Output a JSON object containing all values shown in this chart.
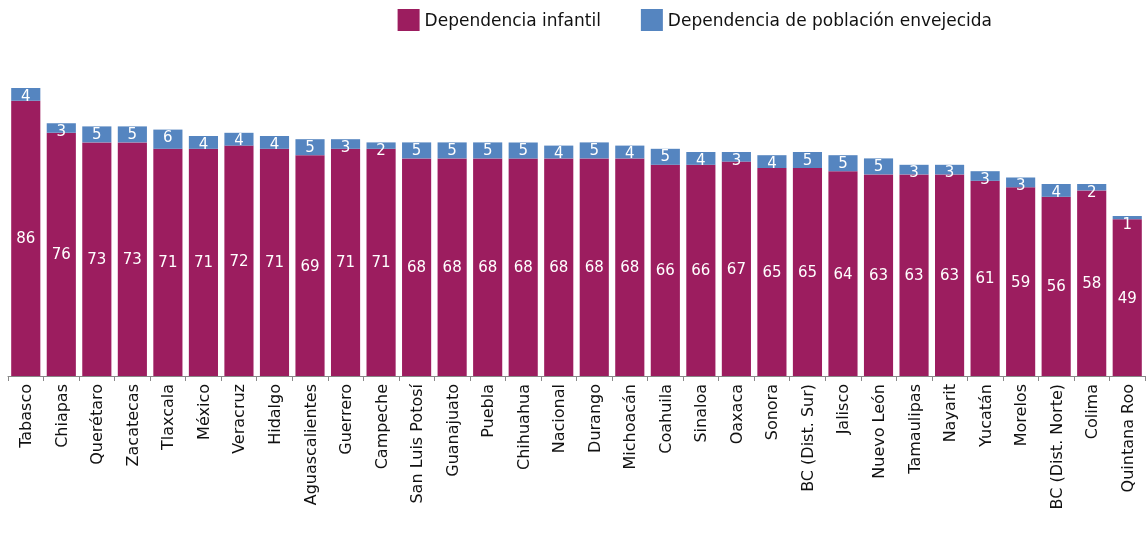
{
  "chart_data": {
    "type": "bar",
    "stacked": true,
    "data_labels": true,
    "legend": "top right",
    "grid": false,
    "categories": [
      "Tabasco",
      "Chiapas",
      "Querétaro",
      "Zacatecas",
      "Tlaxcala",
      "México",
      "Veracruz",
      "Hidalgo",
      "Aguascalientes",
      "Guerrero",
      "Campeche",
      "San Luis Potosí",
      "Guanajuato",
      "Puebla",
      "Chihuahua",
      "Nacional",
      "Durango",
      "Michoacán",
      "Coahuila",
      "Sinaloa",
      "Oaxaca",
      "Sonora",
      "BC (Dist. Sur)",
      "Jalisco",
      "Nuevo León",
      "Tamaulipas",
      "Nayarit",
      "Yucatán",
      "Morelos",
      "BC (Dist. Norte)",
      "Colima",
      "Quintana Roo"
    ],
    "series": [
      {
        "name": "Dependencia infantil",
        "color": "#9c1d5f",
        "values": [
          86,
          76,
          73,
          73,
          71,
          71,
          72,
          71,
          69,
          71,
          71,
          68,
          68,
          68,
          68,
          68,
          68,
          68,
          66,
          66,
          67,
          65,
          65,
          64,
          63,
          63,
          63,
          61,
          59,
          56,
          58,
          49
        ]
      },
      {
        "name": "Dependencia de población envejecida",
        "color": "#5585c0",
        "values": [
          4,
          3,
          5,
          5,
          6,
          4,
          4,
          4,
          5,
          3,
          2,
          5,
          5,
          5,
          5,
          4,
          5,
          4,
          5,
          4,
          3,
          4,
          5,
          5,
          5,
          3,
          3,
          3,
          3,
          4,
          2,
          1
        ]
      }
    ]
  }
}
